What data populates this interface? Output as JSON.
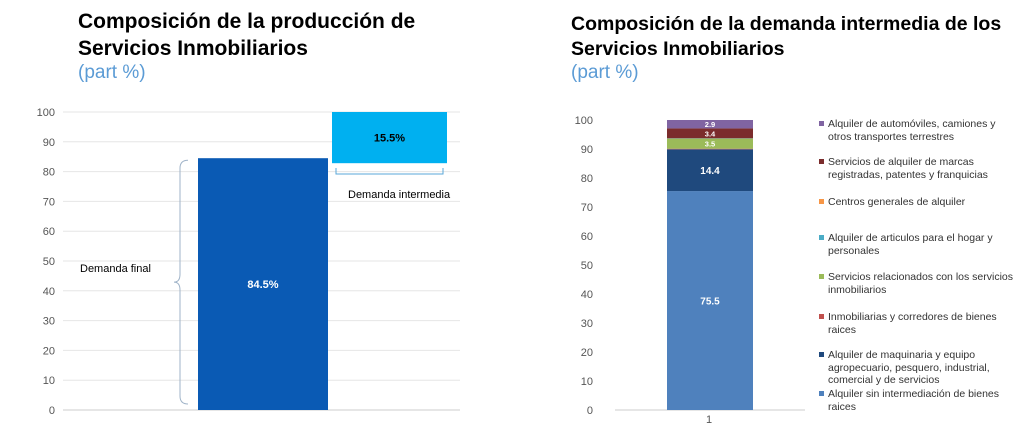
{
  "left_chart": {
    "title_line1": "Composición de la producción de",
    "title_line2": "Servicios Inmobiliarios",
    "subtitle": "(part %)",
    "annotations": {
      "demanda_final": "Demanda final",
      "demanda_intermedia": "Demanda intermedia"
    }
  },
  "right_chart": {
    "title_line1": "Composición de la demanda intermedia de los",
    "title_line2": "Servicios Inmobiliarios",
    "subtitle": "(part %)"
  },
  "chart_data": [
    {
      "type": "bar",
      "variant": "waterfall",
      "title": "Composición de la producción de Servicios Inmobiliarios",
      "subtitle": "(part %)",
      "ylim": [
        0,
        100
      ],
      "yticks": [
        0,
        10,
        20,
        30,
        40,
        50,
        60,
        70,
        80,
        90,
        100
      ],
      "grid": true,
      "categories": [
        "Demanda final",
        "Demanda intermedia"
      ],
      "values": [
        84.5,
        15.5
      ],
      "data_labels": [
        "84.5%",
        "15.5%"
      ],
      "colors": [
        "#0a5ab4",
        "#00b0f0"
      ]
    },
    {
      "type": "bar",
      "variant": "stacked",
      "title": "Composición de la demanda intermedia de los Servicios Inmobiliarios",
      "subtitle": "(part %)",
      "ylim": [
        0,
        100
      ],
      "yticks": [
        0,
        10,
        20,
        30,
        40,
        50,
        60,
        70,
        80,
        90,
        100
      ],
      "grid": false,
      "categories": [
        "1"
      ],
      "legend_position": "right",
      "series": [
        {
          "name": "Alquiler sin intermediación de bienes raices",
          "values": [
            75.5
          ],
          "label": "75.5",
          "color": "#4f81bd"
        },
        {
          "name": "Alquiler de maquinaria y equipo agropecuario, pesquero, industrial, comercial y de servicios",
          "values": [
            14.4
          ],
          "label": "14.4",
          "color": "#1f497d"
        },
        {
          "name": "Inmobiliarias y corredores de bienes raices",
          "values": [
            0.2
          ],
          "label": "",
          "color": "#c0504d"
        },
        {
          "name": "Servicios relacionados con los servicios inmobiliarios",
          "values": [
            3.5
          ],
          "label": "3.5",
          "color": "#9bbb59"
        },
        {
          "name": "Alquiler de articulos para el hogar y personales",
          "values": [
            0.1
          ],
          "label": "",
          "color": "#4bacc6"
        },
        {
          "name": "Centros generales de alquiler",
          "values": [
            0.0
          ],
          "label": "",
          "color": "#f79646"
        },
        {
          "name": "Servicios de alquiler de marcas registradas, patentes y franquicias",
          "values": [
            3.4
          ],
          "label": "3.4",
          "color": "#7b2c2c"
        },
        {
          "name": "Alquiler de automóviles, camiones y otros transportes terrestres",
          "values": [
            2.9
          ],
          "label": "2.9",
          "color": "#8064a2"
        }
      ]
    }
  ]
}
